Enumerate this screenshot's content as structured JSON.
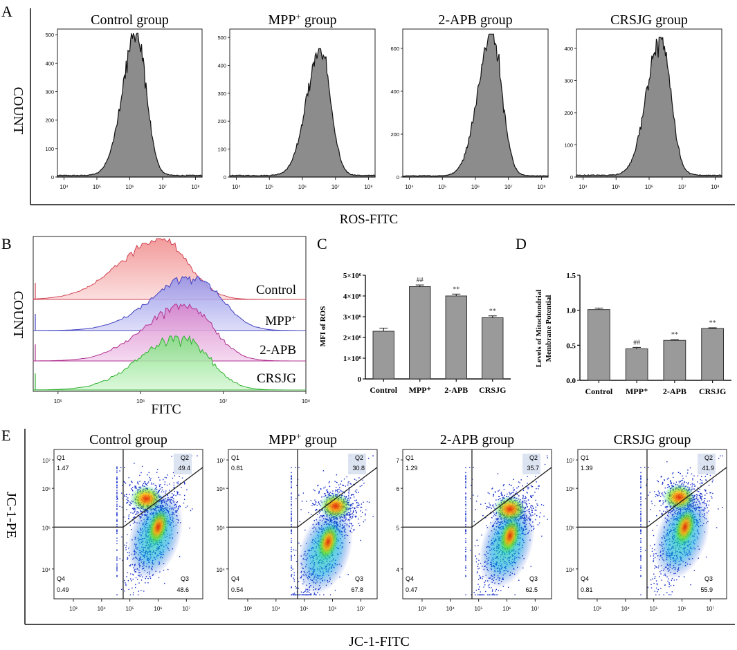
{
  "figure": {
    "panel_labels": [
      "A",
      "B",
      "C",
      "D",
      "E"
    ],
    "panel_a": {
      "y_title": "COUNT",
      "x_title": "ROS-FITC",
      "tick_labels": [
        "10⁴",
        "10⁵",
        "10⁶",
        "10⁷",
        "10⁸"
      ]
    },
    "panel_b": {
      "y_title": "COUNT",
      "x_title": "FITC",
      "tick_labels": [
        "10⁵",
        "10⁶",
        "10⁷",
        "10⁸"
      ]
    },
    "panel_e": {
      "y_title": "JC-1-PE",
      "x_title": "JC-1-FITC",
      "x_tick_labels": [
        "10³",
        "10⁴",
        "10⁵",
        "10⁶",
        "10⁷"
      ]
    },
    "colors": {
      "histogram_fill": "#8c8c8c",
      "bar_fill": "#9a9a9a",
      "overlay_control": "#f4a7a7",
      "overlay_mpp": "#a9a9ee",
      "overlay_2apb": "#e3a0d8",
      "overlay_crsjg": "#a8eaa8"
    }
  },
  "chart_data": [
    {
      "id": "A",
      "type": "area",
      "title": "",
      "xlabel": "ROS-FITC",
      "ylabel": "COUNT",
      "x_scale": "log10",
      "xlim": [
        3.8,
        8.2
      ],
      "series": [
        {
          "name": "Control group",
          "title_main": "Control group",
          "title_sup": "",
          "title_rest": "",
          "peak_log": 6.2,
          "peak_count": 500,
          "ylim": [
            0,
            520
          ],
          "yticks": [
            0,
            100,
            200,
            300,
            400,
            500
          ]
        },
        {
          "name": "MPP+ group",
          "title_main": "MPP",
          "title_sup": "+",
          "title_rest": " group",
          "peak_log": 6.55,
          "peak_count": 455,
          "ylim": [
            0,
            530
          ],
          "yticks": [
            0,
            100,
            200,
            300,
            400,
            500
          ]
        },
        {
          "name": "2-APB group",
          "title_main": "2-APB group",
          "title_sup": "",
          "title_rest": "",
          "peak_log": 6.5,
          "peak_count": 660,
          "ylim": [
            0,
            690
          ],
          "yticks": [
            0,
            200,
            400,
            600
          ]
        },
        {
          "name": "CRSJG group",
          "title_main": "CRSJG group",
          "title_sup": "",
          "title_rest": "",
          "peak_log": 6.35,
          "peak_count": 430,
          "ylim": [
            0,
            460
          ],
          "yticks": [
            0,
            100,
            200,
            300,
            400
          ]
        }
      ]
    },
    {
      "id": "B",
      "type": "area",
      "xlabel": "FITC",
      "ylabel": "COUNT",
      "x_scale": "log10",
      "xlim": [
        4.7,
        8.0
      ],
      "series": [
        {
          "name": "Control",
          "sup": "",
          "peak_log": 6.25
        },
        {
          "name": "MPP",
          "sup": "+",
          "peak_log": 6.65
        },
        {
          "name": "2-APB",
          "sup": "",
          "peak_log": 6.55
        },
        {
          "name": "CRSJG",
          "sup": "",
          "peak_log": 6.5
        }
      ]
    },
    {
      "id": "C",
      "type": "bar",
      "xlabel": "",
      "ylabel": "MFI of ROS",
      "categories": [
        "Control",
        "MPP⁺",
        "2-APB",
        "CRSJG"
      ],
      "values": [
        2300000,
        4450000,
        4000000,
        2950000
      ],
      "errors": [
        150000,
        80000,
        90000,
        90000
      ],
      "annotations": [
        "",
        "##",
        "**",
        "**"
      ],
      "ylim": [
        0,
        5000000
      ],
      "ytick_labels": [
        "0",
        "1×10⁶",
        "2×10⁶",
        "3×10⁶",
        "4×10⁶",
        "5×10⁶"
      ]
    },
    {
      "id": "D",
      "type": "bar",
      "xlabel": "",
      "ylabel_line1": "Levels of Mitochondrial",
      "ylabel_line2": "Membrane Potential",
      "categories": [
        "Control",
        "MPP⁺",
        "2-APB",
        "CRSJG"
      ],
      "values": [
        1.01,
        0.45,
        0.57,
        0.74
      ],
      "errors": [
        0.02,
        0.02,
        0.01,
        0.01
      ],
      "annotations": [
        "",
        "##",
        "**",
        "**"
      ],
      "ylim": [
        0,
        1.5
      ],
      "ytick_labels": [
        "0.0",
        "0.5",
        "1.0",
        "1.5"
      ]
    },
    {
      "id": "E",
      "type": "scatter",
      "xlabel": "JC-1-FITC",
      "ylabel": "JC-1-PE",
      "x_scale": "log10",
      "plots": [
        {
          "title_main": "Control group",
          "title_sup": "",
          "title_rest": "",
          "y_tick_labels": [
            "10⁴",
            "10⁵",
            "10⁶",
            "10⁷"
          ],
          "q1": "1.47",
          "q2": "49.4",
          "q3": "48.6",
          "q4": "0.49"
        },
        {
          "title_main": "MPP",
          "title_sup": "+",
          "title_rest": " group",
          "y_tick_labels": [
            "10⁴",
            "10⁵",
            "10⁶",
            "10⁷"
          ],
          "q1": "0.81",
          "q2": "30.8",
          "q3": "67.8",
          "q4": "0.54"
        },
        {
          "title_main": "2-APB group",
          "title_sup": "",
          "title_rest": "",
          "y_tick_labels": [
            "4",
            "5",
            "6",
            "7"
          ],
          "q1": "1.29",
          "q2": "35.7",
          "q3": "62.5",
          "q4": "0.47"
        },
        {
          "title_main": "CRSJG group",
          "title_sup": "",
          "title_rest": "",
          "y_tick_labels": [
            "10⁴",
            "10⁵",
            "10⁶",
            "10⁷"
          ],
          "q1": "1.39",
          "q2": "41.9",
          "q3": "55.9",
          "q4": "0.81"
        }
      ],
      "quadrant_names": [
        "Q1",
        "Q2",
        "Q3",
        "Q4"
      ]
    }
  ]
}
